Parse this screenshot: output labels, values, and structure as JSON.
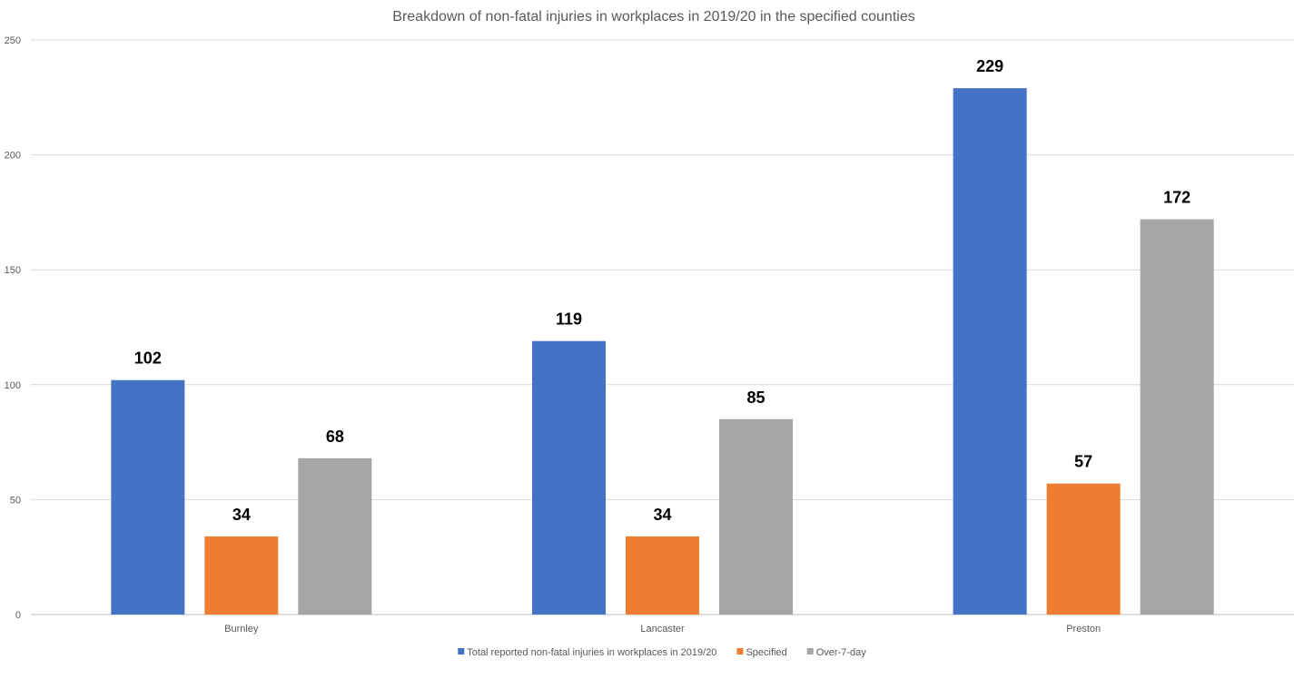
{
  "chart_data": {
    "type": "bar",
    "title": "Breakdown of non-fatal injuries in workplaces in 2019/20 in the specified counties",
    "xlabel": "",
    "ylabel": "",
    "ylim": [
      0,
      250
    ],
    "yticks": [
      0,
      50,
      100,
      150,
      200,
      250
    ],
    "grid": true,
    "legend_position": "bottom",
    "categories": [
      "Burnley",
      "Lancaster",
      "Preston"
    ],
    "series": [
      {
        "name": "Total reported non-fatal injuries in workplaces  in 2019/20",
        "color": "#4472C4",
        "values": [
          102,
          119,
          229
        ]
      },
      {
        "name": "Specified",
        "color": "#ED7D31",
        "values": [
          34,
          34,
          57
        ]
      },
      {
        "name": "Over-7-day",
        "color": "#A5A5A5",
        "values": [
          68,
          85,
          172
        ]
      }
    ]
  }
}
